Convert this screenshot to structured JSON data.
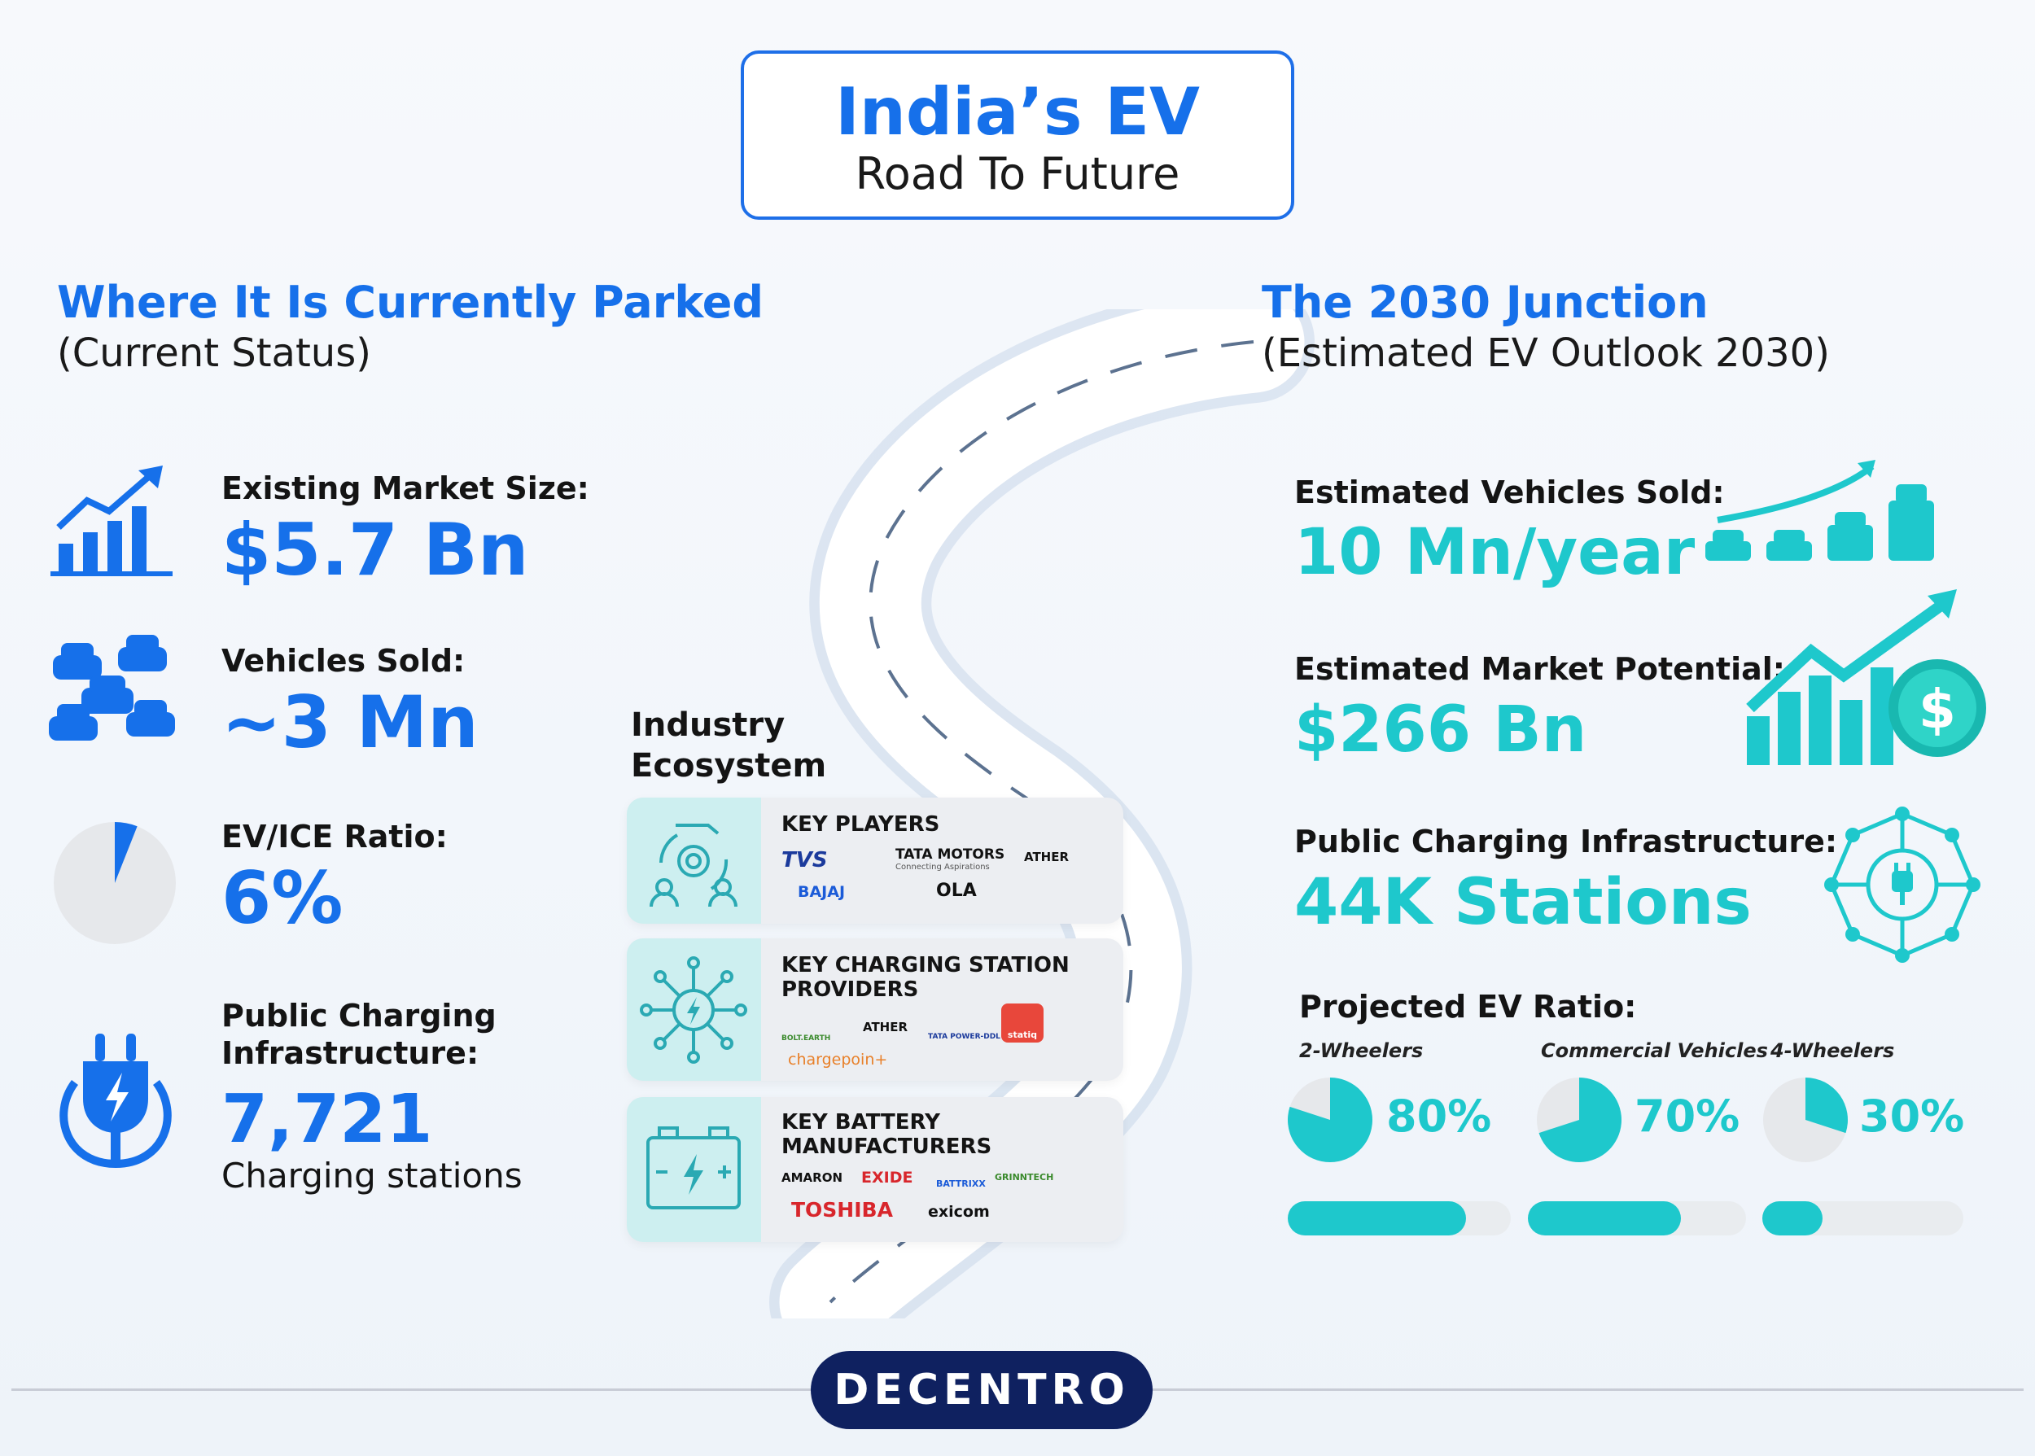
{
  "header": {
    "title": "India’s EV",
    "subtitle": "Road To Future"
  },
  "current": {
    "heading": "Where It Is Currently Parked",
    "subheading": "(Current Status)",
    "market_size": {
      "label": "Existing Market Size:",
      "value": "$5.7 Bn"
    },
    "vehicles_sold": {
      "label": "Vehicles Sold:",
      "value": "~3 Mn"
    },
    "ev_ice_ratio": {
      "label": "EV/ICE Ratio:",
      "value": "6%",
      "fraction": 0.06
    },
    "charging": {
      "label_line1": "Public Charging",
      "label_line2": "Infrastructure:",
      "value": "7,721",
      "unit": "Charging stations"
    }
  },
  "ecosystem": {
    "heading_line1": "Industry",
    "heading_line2": "Ecosystem",
    "key_players": {
      "title": "KEY PLAYERS",
      "logos": [
        "TVS",
        "TATA MOTORS",
        "Connecting Aspirations",
        "ATHER",
        "BAJAJ",
        "OLA"
      ]
    },
    "charging_providers": {
      "title_line1": "KEY CHARGING STATION",
      "title_line2": "PROVIDERS",
      "logos": [
        "BOLT.EARTH",
        "ATHER",
        "TATA POWER-DDL",
        "statiq",
        "chargepoin+"
      ]
    },
    "battery": {
      "title_line1": "KEY BATTERY",
      "title_line2": "MANUFACTURERS",
      "logos": [
        "AMARON",
        "EXIDE",
        "BATTRIXX",
        "GRINNTECH",
        "TOSHIBA",
        "exicom"
      ]
    }
  },
  "outlook": {
    "heading": "The 2030 Junction",
    "subheading": "(Estimated EV Outlook 2030)",
    "vehicles_sold": {
      "label": "Estimated Vehicles Sold:",
      "value": "10 Mn/year"
    },
    "market_potential": {
      "label": "Estimated Market Potential:",
      "value": "$266 Bn"
    },
    "charging": {
      "label": "Public Charging Infrastructure:",
      "value": "44K Stations"
    },
    "projected_ratio": {
      "label": "Projected EV Ratio:",
      "items": [
        {
          "name": "2-Wheelers",
          "value": "80%",
          "fraction": 0.8
        },
        {
          "name": "Commercial Vehicles",
          "value": "70%",
          "fraction": 0.7
        },
        {
          "name": "4-Wheelers",
          "value": "30%",
          "fraction": 0.3
        }
      ]
    }
  },
  "footer": {
    "brand": "DECENTRO"
  },
  "colors": {
    "blue": "#1670ea",
    "teal": "#1ec8cc",
    "navy": "#0f2160"
  },
  "icons": [
    "bar-chart-growth-icon",
    "cars-cluster-icon",
    "pie-chart-icon",
    "ev-plug-icon",
    "gear-hand-icon",
    "network-bolt-icon",
    "battery-icon",
    "cars-growth-icon",
    "market-growth-dollar-icon",
    "charging-network-icon"
  ]
}
